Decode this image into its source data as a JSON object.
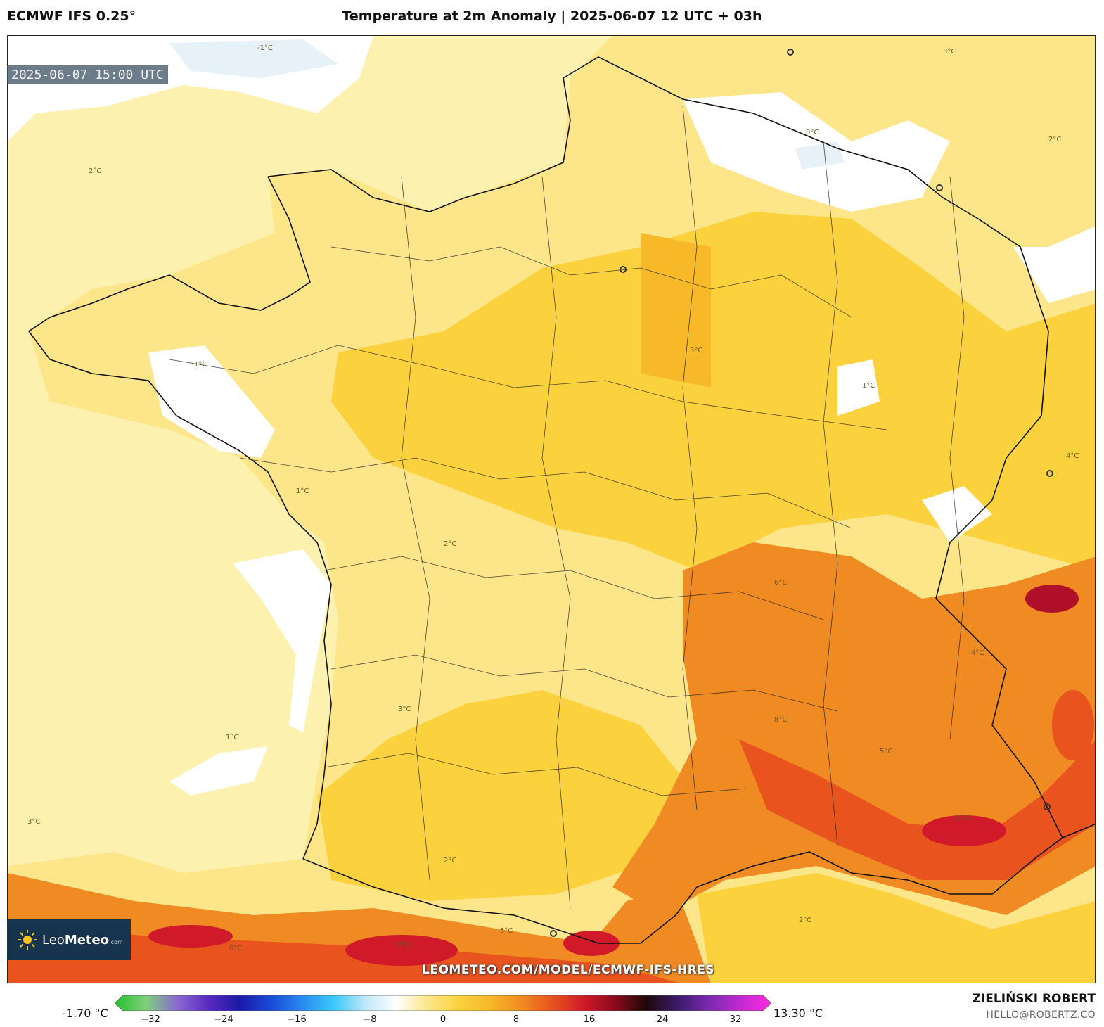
{
  "header": {
    "model": "ECMWF IFS 0.25°",
    "title": "Temperature at 2m Anomaly | 2025-06-07 12 UTC + 03h"
  },
  "map": {
    "valid_time": "2025-06-07 15:00 UTC",
    "watermark": "LEOMETEO.COM/MODEL/ECMWF-IFS-HRES",
    "logo": {
      "name_light": "Leo",
      "name_bold": "Meteo",
      "suffix": ".com"
    },
    "contour_labels": [
      "1°C",
      "2°C",
      "3°C",
      "4°C",
      "5°C",
      "6°C",
      "8°C",
      "10°C",
      "0°C",
      "-1°C",
      "1°C",
      "2°C",
      "3°C",
      "1°C",
      "2°C",
      "3°C",
      "4°C",
      "5°C",
      "6°C",
      "8°C",
      "1°C",
      "2°C",
      "2°C",
      "3°C"
    ],
    "colors": {
      "ocean_pale": "#fdf1b0",
      "land_light": "#fde68a",
      "warm": "#fbd23d",
      "warmer": "#f7b928",
      "hot": "#f08a22",
      "hotter": "#e8531e",
      "hottest": "#d01a2a",
      "cool": "#e6f2f8"
    }
  },
  "colorbar": {
    "min_label": "-1.70 °C",
    "max_label": "13.30 °C",
    "ticks": [
      "−32",
      "−24",
      "−16",
      "−8",
      "0",
      "8",
      "16",
      "24",
      "32"
    ],
    "tick_values": [
      -32,
      -24,
      -16,
      -8,
      0,
      8,
      16,
      24,
      32
    ],
    "range": [
      -35,
      35
    ],
    "stops": [
      "#22c02a",
      "#7ed07a",
      "#8a6ad0",
      "#5a2ac0",
      "#1a1aa8",
      "#1a4ad8",
      "#2a8af0",
      "#3ac8f8",
      "#bde8f8",
      "#ffffff",
      "#fde68a",
      "#fbd23d",
      "#f7b928",
      "#f08a22",
      "#e8531e",
      "#d01a2a",
      "#8a0a1a",
      "#200808",
      "#3a1a6a",
      "#7a2ab0",
      "#c02ad0",
      "#ff2ae0"
    ]
  },
  "footer": {
    "author": "ZIELIŃSKI ROBERT",
    "email": "HELLO@ROBERTZ.CO"
  }
}
